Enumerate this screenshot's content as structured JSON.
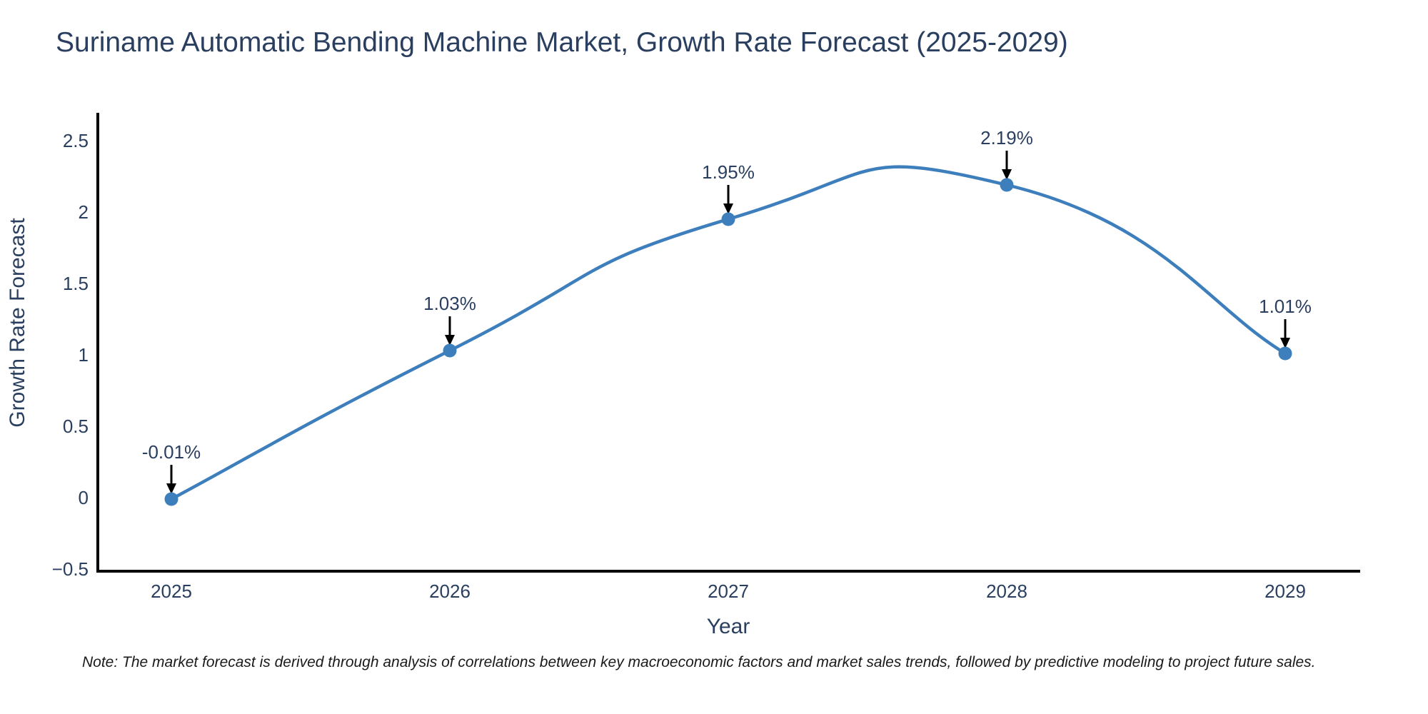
{
  "header": {
    "title": "Suriname Automatic Bending Machine Market, Growth Rate Forecast (2025-2029)"
  },
  "chart_data": {
    "type": "line",
    "line_shape": "spline",
    "title": "Suriname Automatic Bending Machine Market, Growth Rate Forecast (2025-2029)",
    "xlabel": "Year",
    "ylabel": "Growth Rate Forecast",
    "categories": [
      "2025",
      "2026",
      "2027",
      "2028",
      "2029"
    ],
    "series": [
      {
        "name": "Growth Rate Forecast",
        "values": [
          -0.01,
          1.03,
          1.95,
          2.19,
          1.01
        ]
      }
    ],
    "point_labels": [
      "-0.01%",
      "1.03%",
      "1.95%",
      "2.19%",
      "1.01%"
    ],
    "yticks": [
      -0.5,
      0,
      0.5,
      1,
      1.5,
      2,
      2.5
    ],
    "ytick_labels": [
      "−0.5",
      "0",
      "0.5",
      "1",
      "1.5",
      "2",
      "2.5"
    ],
    "ylim": [
      -0.5,
      2.5
    ],
    "grid": false,
    "legend": "none",
    "colors": {
      "line": "#3d7ebc",
      "marker": "#3d7ebc",
      "axis": "#000000",
      "text": "#2a3f5f",
      "annotation_arrow": "#000000"
    }
  },
  "footnote": {
    "text": "Note: The market forecast is derived through analysis of correlations between key macroeconomic factors and market sales trends, followed by predictive modeling to project future sales."
  }
}
